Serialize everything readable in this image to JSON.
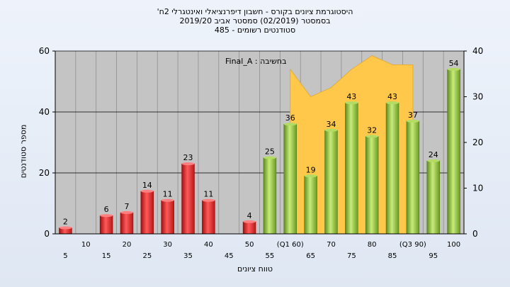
{
  "chart_data": {
    "type": "bar",
    "title_lines": [
      "'היסטוגרמת ציונים בקורס - חשבון דיפרנציאלי ואינטגרלי 2ח",
      "בסמסטר  (02/2019)  סמסטר אביב 2019/20",
      "סטודנטים רשומים - 485"
    ],
    "xlabel": "טווח ציונים",
    "ylabel": "מספר סטודנטים",
    "legend_label": "בחשיבה : Final_A",
    "ylim_left": [
      0,
      60
    ],
    "ylim_right": [
      0,
      40
    ],
    "yticks_left": [
      "0",
      "20",
      "40",
      "60"
    ],
    "yticks_right": [
      "0",
      "10",
      "20",
      "30",
      "40"
    ],
    "categories": [
      "5",
      "10",
      "15",
      "20",
      "25",
      "30",
      "35",
      "40",
      "45",
      "50",
      "55",
      "(Q1 60)",
      "65",
      "70",
      "75",
      "80",
      "85",
      "(Q3 90)",
      "95",
      "100"
    ],
    "values": [
      2,
      0,
      6,
      7,
      14,
      11,
      23,
      11,
      0,
      4,
      25,
      36,
      19,
      34,
      43,
      32,
      43,
      37,
      24,
      54
    ],
    "bar_colors": {
      "fail": "#e02020",
      "pass": "#8dc63f"
    },
    "pass_from_category": "55",
    "area_series": {
      "color": "#ffc84a",
      "x": [
        "(Q1 60)",
        "65",
        "70",
        "75",
        "80",
        "85",
        "(Q3 90)"
      ],
      "values_right_axis": [
        36,
        30,
        32,
        36,
        39,
        37,
        37
      ]
    },
    "grid": true
  }
}
